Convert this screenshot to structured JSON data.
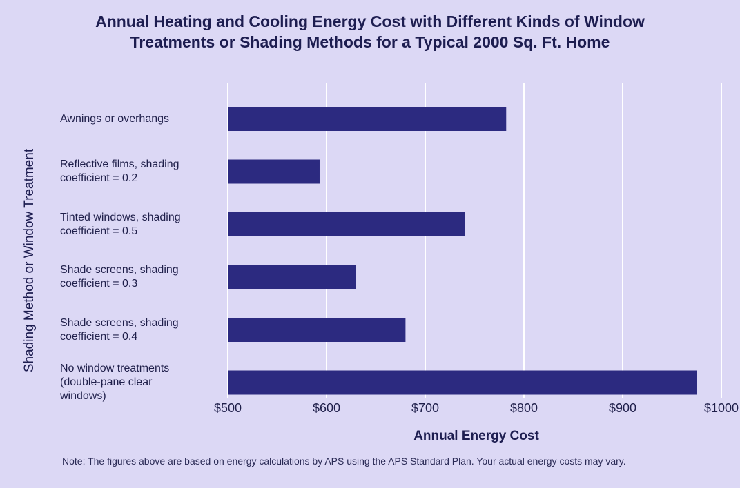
{
  "chart_data": {
    "type": "bar",
    "orientation": "horizontal",
    "title": "Annual Heating and Cooling Energy Cost with Different Kinds of Window Treatments or Shading Methods for a Typical 2000 Sq. Ft. Home",
    "title_lines": [
      "Annual Heating and Cooling Energy Cost with Different Kinds of Window",
      "Treatments or Shading Methods for a Typical 2000 Sq. Ft. Home"
    ],
    "xlabel": "Annual Energy Cost",
    "ylabel": "Shading Method or Window Treatment",
    "categories": [
      [
        "Awnings or overhangs"
      ],
      [
        "Reflective films, shading",
        "coefficient = 0.2"
      ],
      [
        "Tinted windows, shading",
        "coefficient = 0.5"
      ],
      [
        "Shade screens, shading",
        "coefficient = 0.3"
      ],
      [
        "Shade screens, shading",
        "coefficient = 0.4"
      ],
      [
        "No window treatments",
        "(double-pane clear",
        "windows)"
      ]
    ],
    "values": [
      782,
      593,
      740,
      630,
      680,
      975
    ],
    "xlim": [
      500,
      1000
    ],
    "xticks": [
      500,
      600,
      700,
      800,
      900,
      1000
    ],
    "xtick_labels": [
      "$500",
      "$600",
      "$700",
      "$800",
      "$900",
      "$1000"
    ],
    "grid": "vertical",
    "bar_color": "#2c2a80",
    "grid_color": "#ffffff",
    "note": "Note: The figures above are based on energy calculations by APS using the APS Standard Plan. Your actual energy costs may vary."
  }
}
